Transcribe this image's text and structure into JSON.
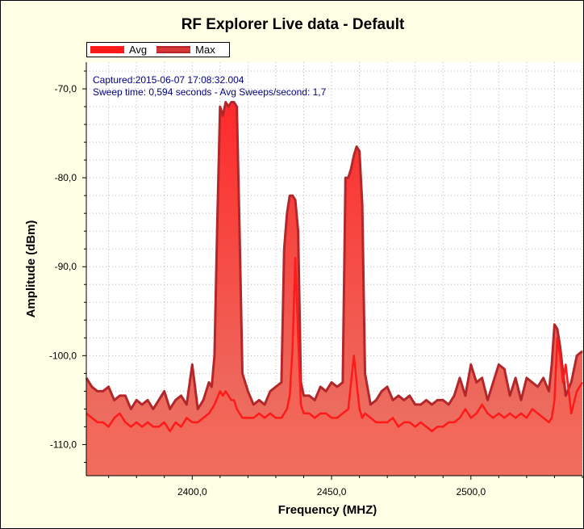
{
  "colors": {
    "background": "#ffffe6",
    "plot_area": "#ffffff",
    "avg_line": "#ff1a1a",
    "max_line": "#b3272a",
    "fill_top": "#ff2a2a",
    "fill_bottom": "#e87a6a",
    "axis_text": "#000000",
    "info_text": "#000080"
  },
  "chart_data": {
    "type": "area",
    "title": "RF Explorer Live data - Default",
    "xlabel": "Frequency (MHZ)",
    "ylabel": "Amplitude (dBm)",
    "xlim": [
      2362,
      2540
    ],
    "ylim": [
      -113.5,
      -67
    ],
    "x_ticks": [
      2400,
      2450,
      2500
    ],
    "x_tick_labels": [
      "2400,0",
      "2450,0",
      "2500,0"
    ],
    "y_ticks": [
      -110,
      -100,
      -90,
      -80,
      -70
    ],
    "y_tick_labels": [
      "-110,0",
      "-100,0",
      "-90,0",
      "-80,0",
      "-70,0"
    ],
    "grid": true,
    "legend_position": "top-left",
    "info_lines": [
      "Captured:2015-06-07 17:08:32.004",
      "Sweep time: 0,594 seconds - Avg Sweeps/second: 1,7"
    ],
    "series": [
      {
        "name": "Avg",
        "x": [
          2362,
          2364,
          2366,
          2368,
          2370,
          2372,
          2374,
          2376,
          2378,
          2380,
          2382,
          2384,
          2386,
          2388,
          2390,
          2392,
          2394,
          2396,
          2398,
          2400,
          2402,
          2404,
          2406,
          2408,
          2410,
          2411,
          2412,
          2413,
          2414,
          2415,
          2416,
          2418,
          2420,
          2422,
          2424,
          2426,
          2428,
          2430,
          2432,
          2434,
          2435,
          2436,
          2437,
          2438,
          2439,
          2440,
          2442,
          2444,
          2446,
          2448,
          2450,
          2452,
          2454,
          2456,
          2457,
          2458,
          2459,
          2460,
          2461,
          2462,
          2464,
          2466,
          2468,
          2470,
          2472,
          2474,
          2476,
          2478,
          2480,
          2482,
          2484,
          2486,
          2488,
          2490,
          2492,
          2494,
          2496,
          2498,
          2500,
          2502,
          2504,
          2506,
          2508,
          2510,
          2512,
          2514,
          2516,
          2518,
          2520,
          2522,
          2524,
          2526,
          2528,
          2529,
          2530,
          2531,
          2532,
          2533,
          2534,
          2536,
          2538,
          2540
        ],
        "values": [
          -106.5,
          -107,
          -107.5,
          -107.5,
          -108,
          -107,
          -106.5,
          -107.5,
          -108,
          -107.5,
          -108,
          -107.5,
          -108,
          -108,
          -107.5,
          -108.5,
          -107.5,
          -108,
          -107,
          -107.5,
          -107.5,
          -107,
          -106.5,
          -105.5,
          -104,
          -104.5,
          -104,
          -104.5,
          -105,
          -105,
          -106,
          -107,
          -107,
          -107,
          -106.5,
          -107,
          -106.5,
          -107,
          -107,
          -106,
          -104.5,
          -99,
          -89,
          -98,
          -105.5,
          -106.5,
          -106.5,
          -107,
          -106.5,
          -106.5,
          -107,
          -107,
          -106.5,
          -106,
          -103,
          -100,
          -103,
          -106,
          -107,
          -106.5,
          -107,
          -107.5,
          -107.5,
          -107.5,
          -107,
          -108,
          -107.5,
          -107.5,
          -108,
          -107.5,
          -108,
          -108.5,
          -108,
          -108,
          -107.5,
          -107.5,
          -107,
          -106,
          -107,
          -106.5,
          -105.5,
          -106.5,
          -107,
          -106.5,
          -107,
          -106.5,
          -107,
          -106.5,
          -107,
          -106,
          -106.5,
          -107,
          -107.5,
          -107,
          -105,
          -98,
          -100,
          -103,
          -101,
          -106.5,
          -104,
          -103
        ],
        "color": "#ff1a1a"
      },
      {
        "name": "Max",
        "x": [
          2362,
          2364,
          2366,
          2368,
          2370,
          2372,
          2374,
          2376,
          2378,
          2380,
          2382,
          2384,
          2386,
          2388,
          2390,
          2392,
          2394,
          2396,
          2398,
          2400,
          2402,
          2404,
          2406,
          2407,
          2408,
          2409,
          2410,
          2411,
          2412,
          2413,
          2414,
          2415,
          2416,
          2417,
          2418,
          2420,
          2422,
          2424,
          2426,
          2428,
          2430,
          2432,
          2433,
          2434,
          2435,
          2436,
          2437,
          2438,
          2439,
          2440,
          2442,
          2444,
          2446,
          2448,
          2450,
          2452,
          2454,
          2455,
          2456,
          2457,
          2458,
          2459,
          2460,
          2461,
          2462,
          2464,
          2466,
          2468,
          2470,
          2472,
          2474,
          2476,
          2478,
          2480,
          2482,
          2484,
          2486,
          2488,
          2490,
          2492,
          2494,
          2496,
          2498,
          2500,
          2502,
          2504,
          2506,
          2508,
          2510,
          2512,
          2514,
          2516,
          2518,
          2520,
          2522,
          2524,
          2526,
          2528,
          2529,
          2530,
          2531,
          2532,
          2534,
          2536,
          2538,
          2540
        ],
        "values": [
          -102.5,
          -103.5,
          -104,
          -104,
          -103.5,
          -105,
          -104.5,
          -104.5,
          -106,
          -105,
          -105.5,
          -105,
          -106,
          -105,
          -104,
          -106,
          -105,
          -104.5,
          -105.5,
          -101,
          -106,
          -105,
          -103,
          -103.5,
          -100,
          -85,
          -72,
          -73,
          -71.5,
          -72,
          -71.5,
          -71.5,
          -72,
          -86,
          -102,
          -104,
          -105.5,
          -105,
          -105.5,
          -104,
          -103.5,
          -103,
          -88,
          -84,
          -82,
          -82,
          -82.5,
          -86,
          -103,
          -104.5,
          -104.5,
          -105,
          -103.5,
          -104,
          -103,
          -103.5,
          -103,
          -80,
          -80,
          -79,
          -77.5,
          -76.5,
          -77,
          -83,
          -102,
          -105.5,
          -105,
          -104,
          -103.5,
          -105,
          -104.5,
          -105,
          -104.5,
          -105.5,
          -105.5,
          -105,
          -105.5,
          -105,
          -105,
          -105.5,
          -104.5,
          -102.5,
          -104.5,
          -101,
          -103,
          -102.5,
          -105,
          -103,
          -101,
          -101.5,
          -104.5,
          -102.5,
          -105,
          -102.5,
          -103,
          -103.5,
          -102.5,
          -104,
          -101,
          -96.5,
          -97,
          -99,
          -104.5,
          -103,
          -100,
          -99.5
        ],
        "color": "#b3272a"
      }
    ]
  }
}
